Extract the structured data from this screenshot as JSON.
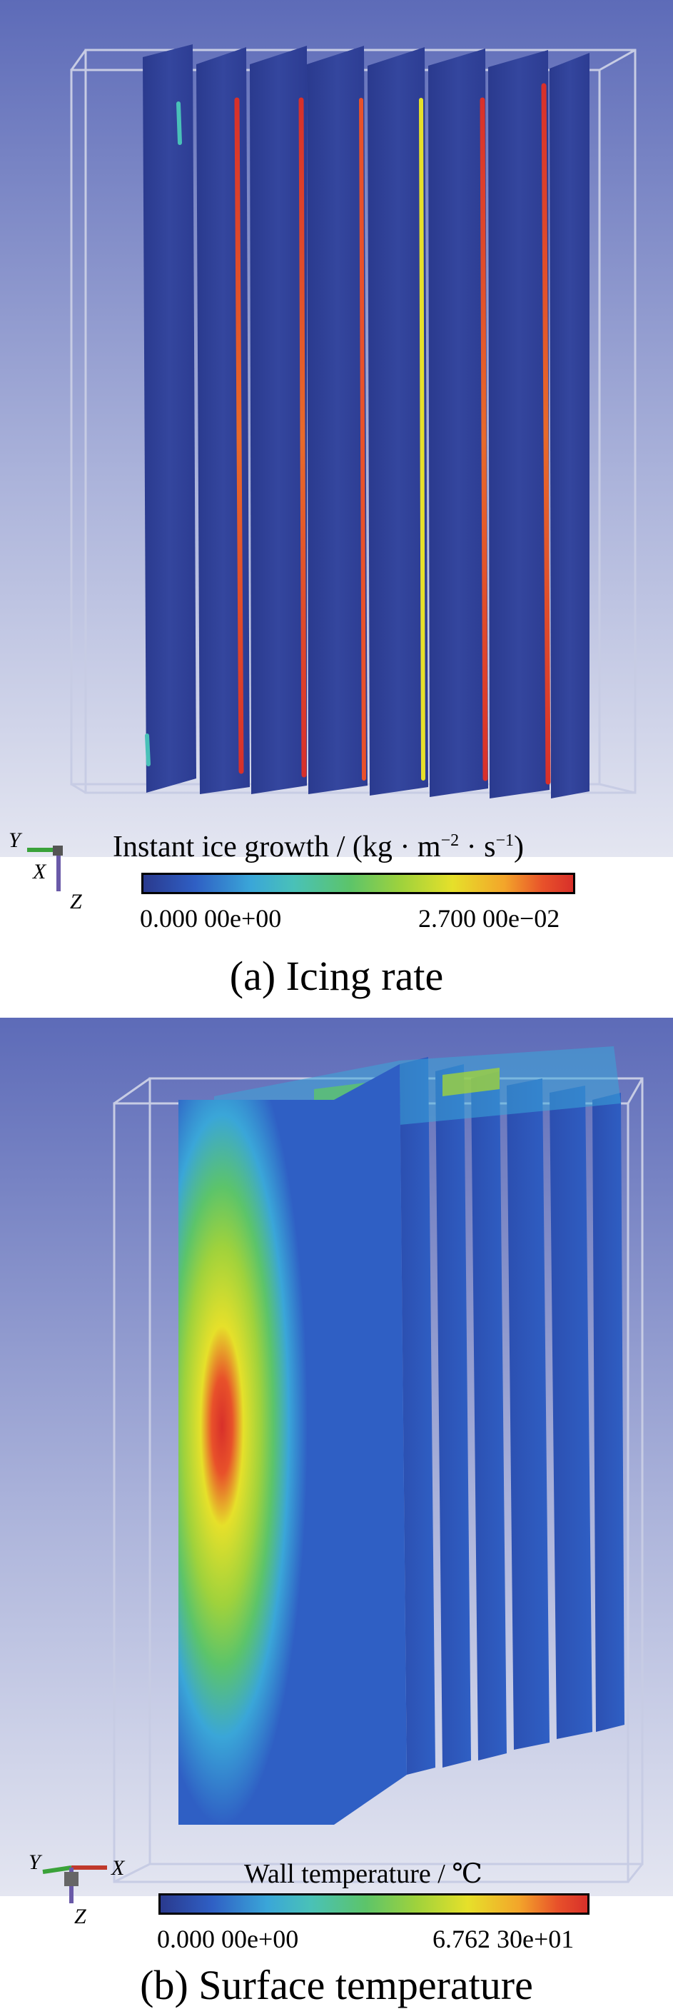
{
  "panel_a": {
    "legend_title": "Instant ice growth / (kg · m",
    "legend_exp1": "−2",
    "legend_mid": " · s",
    "legend_exp2": "−1",
    "legend_close": ")",
    "min_label": "0.000 00e+00",
    "max_label": "2.700 00e−02",
    "caption": "(a) Icing rate",
    "axis": {
      "y": "Y",
      "x": "X",
      "z": "Z"
    }
  },
  "panel_b": {
    "legend_title": "Wall temperature / ℃",
    "min_label": "0.000 00e+00",
    "max_label": "6.762 30e+01",
    "caption": "(b) Surface temperature",
    "axis": {
      "y": "Y",
      "x": "X",
      "z": "Z"
    }
  },
  "colors": {
    "background_top": "#5d6bb8",
    "background_bottom": "#e4e6f1",
    "fin_blue": "#2f3f98",
    "hot_red": "#d8302a",
    "warm_yellow": "#e6e02a",
    "mid_green": "#5cc46a",
    "cool_cyan": "#3aa6d8"
  }
}
